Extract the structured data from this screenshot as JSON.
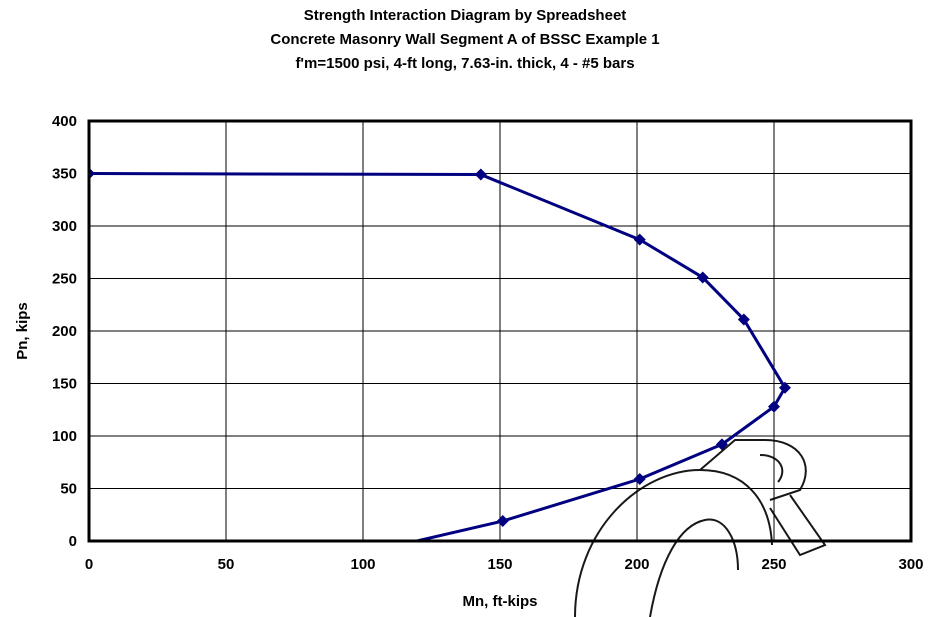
{
  "chart_data": {
    "type": "scatter",
    "title": [
      "Strength Interaction Diagram by Spreadsheet",
      "Concrete Masonry Wall Segment A of BSSC Example 1",
      "f'm=1500 psi, 4-ft long, 7.63-in. thick, 4 - #5 bars"
    ],
    "xlabel": "Mn, ft-kips",
    "ylabel": "Pn, kips",
    "xlim": [
      0,
      300
    ],
    "ylim": [
      0,
      400
    ],
    "xticks": [
      0,
      50,
      100,
      150,
      200,
      250,
      300
    ],
    "yticks": [
      0,
      50,
      100,
      150,
      200,
      250,
      300,
      350,
      400
    ],
    "grid": true,
    "legend": "none",
    "colors": {
      "series": "#000080",
      "frame": "#000000",
      "grid": "#000000"
    },
    "series": [
      {
        "marker": "diamond",
        "line": true,
        "x": [
          0,
          143,
          201,
          224,
          239,
          254,
          250,
          231,
          201,
          151,
          113
        ],
        "y": [
          350,
          349,
          287,
          251,
          211,
          146,
          128,
          92,
          59,
          19,
          -4
        ]
      }
    ]
  }
}
